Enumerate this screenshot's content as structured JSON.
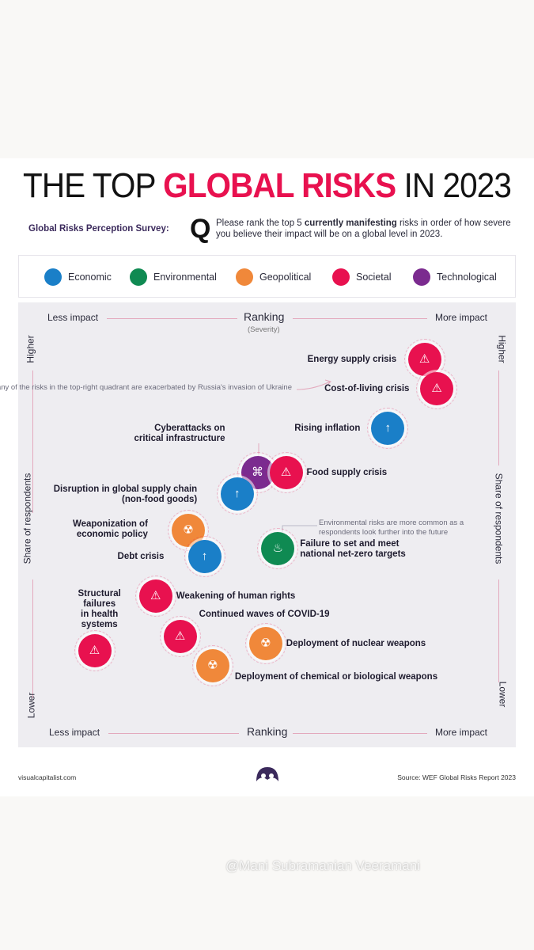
{
  "header": {
    "title_part1": "THE TOP ",
    "title_highlight": "GLOBAL RISKS",
    "title_part2": " IN 2023",
    "survey_label": "Global Risks Perception Survey:",
    "q_mark": "Q",
    "question_pre": "Please rank the top 5 ",
    "question_bold": "currently manifesting",
    "question_post": " risks in order of how severe you believe their impact will be on a global level in 2023."
  },
  "legend": [
    {
      "label": "Economic",
      "color": "#1a7fc8"
    },
    {
      "label": "Environmental",
      "color": "#0f8a52"
    },
    {
      "label": "Geopolitical",
      "color": "#f0883a"
    },
    {
      "label": "Societal",
      "color": "#e8114f"
    },
    {
      "label": "Technological",
      "color": "#7b2b8f"
    }
  ],
  "axes": {
    "x_left": "Less impact",
    "x_right": "More impact",
    "x_title": "Ranking",
    "x_subtitle": "(Severity)",
    "y_title": "Share of respondents",
    "y_high": "Higher",
    "y_low": "Lower"
  },
  "chart_data": {
    "type": "scatter",
    "title": "THE TOP GLOBAL RISKS IN 2023",
    "xlabel": "Ranking (Severity)",
    "ylabel": "Share of respondents",
    "xlim": [
      0,
      100
    ],
    "ylim": [
      0,
      100
    ],
    "x_range_labels": [
      "Less impact",
      "More impact"
    ],
    "y_range_labels": [
      "Lower",
      "Higher"
    ],
    "points": [
      {
        "label": "Energy supply crisis",
        "category": "Societal",
        "x": 91,
        "y": 94
      },
      {
        "label": "Cost-of-living crisis",
        "category": "Societal",
        "x": 94,
        "y": 86
      },
      {
        "label": "Rising inflation",
        "category": "Economic",
        "x": 82,
        "y": 75
      },
      {
        "label": "Cyberattacks on critical infrastructure",
        "category": "Technological",
        "x": 50,
        "y": 63
      },
      {
        "label": "Food supply crisis",
        "category": "Societal",
        "x": 57,
        "y": 63
      },
      {
        "label": "Disruption in global supply chain (non-food goods)",
        "category": "Economic",
        "x": 45,
        "y": 57
      },
      {
        "label": "Weaponization of economic policy",
        "category": "Geopolitical",
        "x": 33,
        "y": 47
      },
      {
        "label": "Failure to set and meet national net-zero targets",
        "category": "Environmental",
        "x": 55,
        "y": 42
      },
      {
        "label": "Debt crisis",
        "category": "Economic",
        "x": 37,
        "y": 40
      },
      {
        "label": "Weakening of human rights",
        "category": "Societal",
        "x": 25,
        "y": 29
      },
      {
        "label": "Continued waves of COVID-19",
        "category": "Societal",
        "x": 31,
        "y": 18
      },
      {
        "label": "Deployment of nuclear weapons",
        "category": "Geopolitical",
        "x": 52,
        "y": 16
      },
      {
        "label": "Structural failures in health systems",
        "category": "Societal",
        "x": 10,
        "y": 14
      },
      {
        "label": "Deployment of chemical or biological weapons",
        "category": "Geopolitical",
        "x": 39,
        "y": 10
      }
    ],
    "annotations": [
      "Many of the risks in the top-right quadrant are exacerbated by Russia's invasion of Ukraine",
      "Environmental risks are more common as a respondents look further into the future"
    ]
  },
  "footer": {
    "site": "visualcapitalist.com",
    "source": "Source: WEF Global Risks Report 2023",
    "watermark": "@Mani Subramanian Veeramani"
  }
}
